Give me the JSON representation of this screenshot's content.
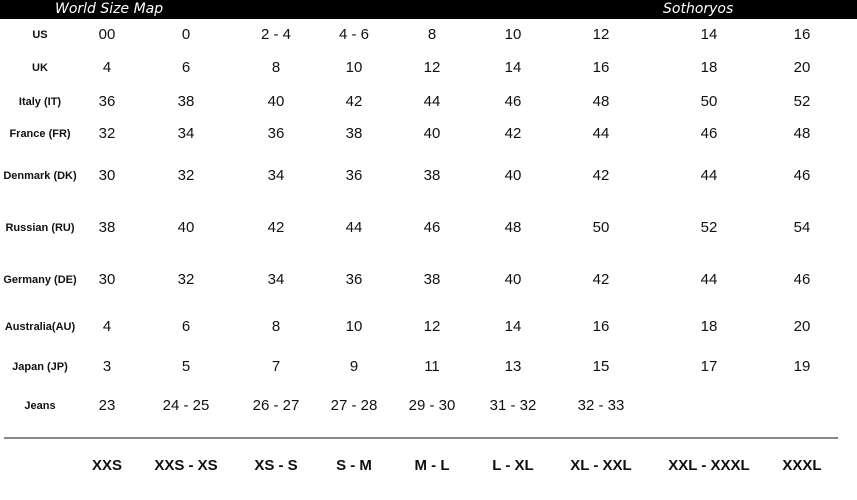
{
  "header": {
    "title": "World Size Map",
    "brand": "Sothoryos"
  },
  "rows": [
    {
      "label": "US",
      "values": [
        "00",
        "0",
        "2 - 4",
        "4 - 6",
        "8",
        "10",
        "12",
        "14",
        "16"
      ]
    },
    {
      "label": "UK",
      "values": [
        "4",
        "6",
        "8",
        "10",
        "12",
        "14",
        "16",
        "18",
        "20"
      ]
    },
    {
      "label": "Italy (IT)",
      "values": [
        "36",
        "38",
        "40",
        "42",
        "44",
        "46",
        "48",
        "50",
        "52"
      ]
    },
    {
      "label": "France (FR)",
      "values": [
        "32",
        "34",
        "36",
        "38",
        "40",
        "42",
        "44",
        "46",
        "48"
      ]
    },
    {
      "label": "Denmark (DK)",
      "values": [
        "30",
        "32",
        "34",
        "36",
        "38",
        "40",
        "42",
        "44",
        "46"
      ]
    },
    {
      "label": "Russian (RU)",
      "values": [
        "38",
        "40",
        "42",
        "44",
        "46",
        "48",
        "50",
        "52",
        "54"
      ]
    },
    {
      "label": "Germany (DE)",
      "values": [
        "30",
        "32",
        "34",
        "36",
        "38",
        "40",
        "42",
        "44",
        "46"
      ]
    },
    {
      "label": "Australia(AU)",
      "values": [
        "4",
        "6",
        "8",
        "10",
        "12",
        "14",
        "16",
        "18",
        "20"
      ]
    },
    {
      "label": "Japan (JP)",
      "values": [
        "3",
        "5",
        "7",
        "9",
        "11",
        "13",
        "15",
        "17",
        "19"
      ]
    },
    {
      "label": "Jeans",
      "values": [
        "23",
        "24 - 25",
        "26 - 27",
        "27 - 28",
        "29 - 30",
        "31 - 32",
        "32 - 33",
        "",
        ""
      ]
    }
  ],
  "sizes": [
    "XXS",
    "XXS - XS",
    "XS - S",
    "S - M",
    "M - L",
    "L - XL",
    "XL - XXL",
    "XXL - XXXL",
    "XXXL"
  ]
}
